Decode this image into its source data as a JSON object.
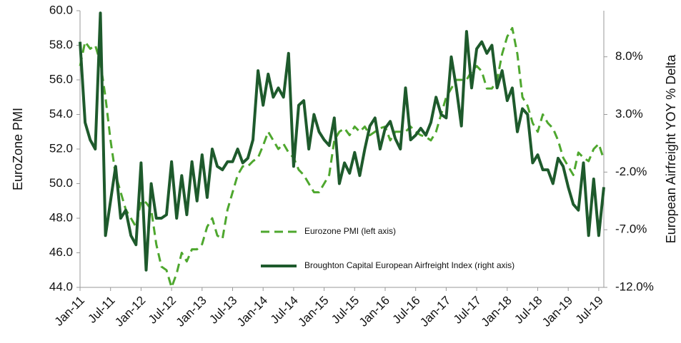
{
  "chart_data": {
    "type": "line",
    "ylabel": "EuroZone PMI",
    "y2label": "European Airfreight YOY % Delta",
    "categories": [
      "Jan-11",
      null,
      null,
      null,
      null,
      null,
      "Jul-11",
      null,
      null,
      null,
      null,
      null,
      "Jan-12",
      null,
      null,
      null,
      null,
      null,
      "Jul-12",
      null,
      null,
      null,
      null,
      null,
      "Jan-13",
      null,
      null,
      null,
      null,
      null,
      "Jul-13",
      null,
      null,
      null,
      null,
      null,
      "Jan-14",
      null,
      null,
      null,
      null,
      null,
      "Jul-14",
      null,
      null,
      null,
      null,
      null,
      "Jan-15",
      null,
      null,
      null,
      null,
      null,
      "Jul-15",
      null,
      null,
      null,
      null,
      null,
      "Jan-16",
      null,
      null,
      null,
      null,
      null,
      "Jul-16",
      null,
      null,
      null,
      null,
      null,
      "Jan-17",
      null,
      null,
      null,
      null,
      null,
      "Jul-17",
      null,
      null,
      null,
      null,
      null,
      "Jan-18",
      null,
      null,
      null,
      null,
      null,
      "Jul-18",
      null,
      null,
      null,
      null,
      null,
      "Jan-19",
      null,
      null,
      null,
      null,
      null,
      "Jul-19",
      null
    ],
    "series": [
      {
        "name": "Eurozone PMI (left axis)",
        "color": "#4ea72e",
        "line_style": "dashed",
        "axis": "y",
        "values": [
          56.8,
          58.2,
          57.8,
          58.0,
          57.0,
          55.0,
          52.5,
          50.5,
          49.5,
          48.5,
          48.0,
          47.5,
          49.0,
          48.9,
          48.5,
          46.5,
          45.2,
          45.0,
          44.0,
          44.8,
          46.0,
          45.5,
          46.2,
          46.2,
          46.5,
          47.5,
          48.0,
          47.0,
          46.8,
          48.5,
          49.5,
          50.5,
          51.0,
          51.0,
          51.3,
          51.5,
          52.2,
          53.0,
          52.5,
          52.0,
          52.3,
          51.8,
          51.5,
          50.8,
          50.5,
          50.0,
          49.5,
          49.5,
          50.0,
          50.5,
          52.5,
          53.0,
          53.2,
          52.8,
          53.3,
          53.0,
          53.3,
          52.8,
          53.0,
          53.2,
          53.3,
          52.5,
          53.0,
          53.0,
          53.0,
          53.3,
          53.0,
          52.8,
          52.7,
          52.5,
          53.0,
          54.0,
          55.0,
          55.5,
          56.0,
          56.0,
          56.0,
          56.5,
          56.8,
          56.5,
          55.5,
          55.5,
          56.0,
          57.5,
          58.5,
          59.0,
          57.5,
          55.0,
          54.5,
          53.5,
          53.0,
          54.0,
          53.5,
          53.2,
          52.5,
          51.5,
          51.0,
          50.5,
          51.8,
          51.5,
          51.3,
          52.0,
          52.3,
          51.4
        ]
      },
      {
        "name": "Broughton Capital European Airfreight Index (right axis)",
        "color": "#1e5a2c",
        "line_style": "solid",
        "axis": "y2",
        "values": [
          9.3,
          2.3,
          0.8,
          0.0,
          11.8,
          -7.5,
          -4.5,
          -1.5,
          -6.0,
          -5.3,
          -7.5,
          -8.3,
          -1.2,
          -10.5,
          -3.0,
          -6.0,
          -6.0,
          -5.7,
          -1.1,
          -6.0,
          -2.3,
          -5.7,
          -1.1,
          -4.5,
          -0.5,
          -4.2,
          0.0,
          -1.5,
          -1.8,
          -1.1,
          -1.1,
          0.0,
          -1.2,
          -0.8,
          0.8,
          6.8,
          3.8,
          6.5,
          4.5,
          5.3,
          4.5,
          8.3,
          -1.5,
          3.8,
          4.2,
          0.0,
          3.0,
          1.5,
          0.8,
          0.3,
          2.7,
          -3.0,
          -1.2,
          -2.1,
          -0.3,
          -2.3,
          0.0,
          2.0,
          2.7,
          0.0,
          1.8,
          2.4,
          0.9,
          0.0,
          5.3,
          0.8,
          1.2,
          1.8,
          1.2,
          2.3,
          4.5,
          3.0,
          2.7,
          8.0,
          5.3,
          2.0,
          10.2,
          5.3,
          8.7,
          9.3,
          8.3,
          9.0,
          5.3,
          6.8,
          4.2,
          5.3,
          1.5,
          3.5,
          3.0,
          -1.2,
          -0.5,
          -1.8,
          -1.8,
          -3.0,
          -0.8,
          -1.5,
          -3.3,
          -4.8,
          -5.3,
          -1.2,
          -7.5,
          -2.6,
          -7.5,
          -3.3
        ]
      }
    ],
    "ylim": [
      44,
      60
    ],
    "yticks": [
      {
        "value": 44,
        "label": "44.0"
      },
      {
        "value": 46,
        "label": "46.0"
      },
      {
        "value": 48,
        "label": "48.0"
      },
      {
        "value": 50,
        "label": "50.0"
      },
      {
        "value": 52,
        "label": "52.0"
      },
      {
        "value": 54,
        "label": "54.0"
      },
      {
        "value": 56,
        "label": "56.0"
      },
      {
        "value": 58,
        "label": "58.0"
      },
      {
        "value": 60,
        "label": "60.0"
      }
    ],
    "y2lim": [
      -12,
      12
    ],
    "y2ticks": [
      {
        "value": -12,
        "label": "-12.0%"
      },
      {
        "value": -7,
        "label": "-7.0%"
      },
      {
        "value": -2,
        "label": "-2.0%"
      },
      {
        "value": 3,
        "label": "3.0%"
      },
      {
        "value": 8,
        "label": "8.0%"
      }
    ],
    "grid": false
  }
}
